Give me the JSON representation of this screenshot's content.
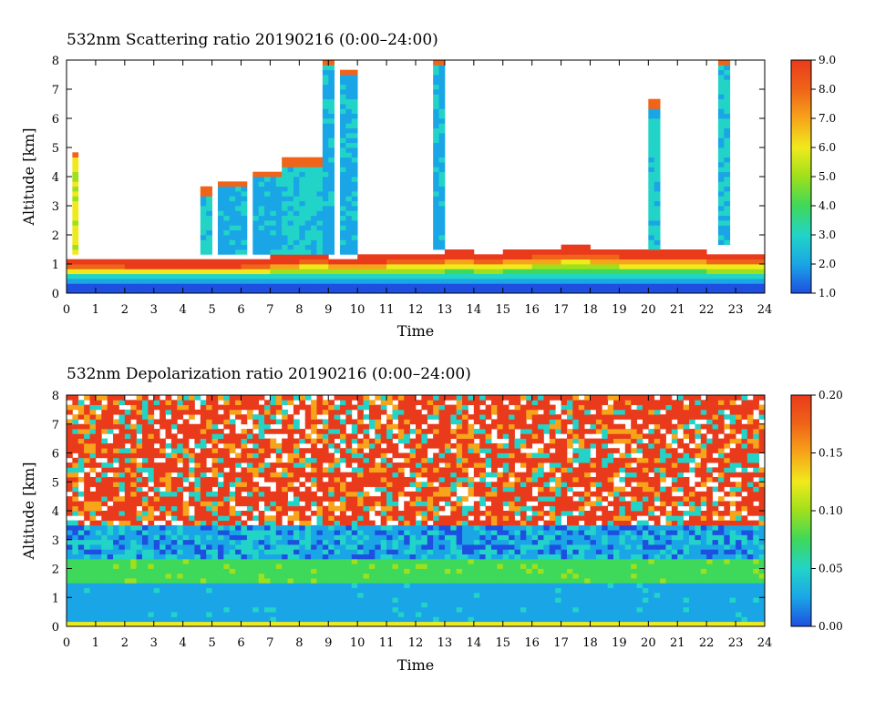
{
  "chart_data": [
    {
      "type": "heatmap",
      "title": "532nm Scattering ratio  20190216 (0:00–24:00)",
      "xlabel": "Time",
      "ylabel": "Altitude [km]",
      "xlim": [
        0,
        24
      ],
      "ylim": [
        0,
        8
      ],
      "x_ticks": [
        "0",
        "1",
        "2",
        "3",
        "4",
        "5",
        "6",
        "7",
        "8",
        "9",
        "10",
        "11",
        "12",
        "13",
        "14",
        "15",
        "16",
        "17",
        "18",
        "19",
        "20",
        "21",
        "22",
        "23",
        "24"
      ],
      "y_ticks": [
        "0",
        "1",
        "2",
        "3",
        "4",
        "5",
        "6",
        "7",
        "8"
      ],
      "colorbar": {
        "range": [
          1.0,
          9.0
        ],
        "ticks": [
          "1.0",
          "2.0",
          "3.0",
          "4.0",
          "5.0",
          "6.0",
          "7.0",
          "8.0",
          "9.0"
        ],
        "colors": [
          "#1e4fe0",
          "#1aa6e6",
          "#22d4c8",
          "#3ed85a",
          "#9fe01c",
          "#f0ea1c",
          "#f7a41a",
          "#ef6418",
          "#ea3a1c"
        ]
      },
      "features": {
        "boundary_layer_top_km": [
          1.2,
          1.2,
          1.15,
          1.1,
          1.1,
          1.15,
          1.2,
          1.3,
          1.35,
          1.25,
          1.3,
          1.35,
          1.4,
          1.45,
          1.4,
          1.5,
          1.55,
          1.6,
          1.55,
          1.5,
          1.5,
          1.45,
          1.4,
          1.4,
          1.35
        ],
        "cloud_columns": [
          {
            "x": [
              0.15,
              0.35
            ],
            "alt_km": [
              1.4,
              4.9
            ],
            "peak": 5.5
          },
          {
            "x": [
              4.6,
              4.9
            ],
            "alt_km": [
              1.4,
              3.6
            ],
            "peak": 3
          },
          {
            "x": [
              5.2,
              6.3
            ],
            "alt_km": [
              1.4,
              3.9
            ],
            "peak": 2.5
          },
          {
            "x": [
              6.4,
              7.3
            ],
            "alt_km": [
              1.4,
              4.2
            ],
            "peak": 2.5
          },
          {
            "x": [
              7.5,
              8.9
            ],
            "alt_km": [
              1.4,
              4.6
            ],
            "peak": 3
          },
          {
            "x": [
              8.9,
              9.1
            ],
            "alt_km": [
              1.4,
              8.0
            ],
            "peak": 2.5
          },
          {
            "x": [
              9.5,
              10.0
            ],
            "alt_km": [
              1.4,
              7.7
            ],
            "peak": 2.5
          },
          {
            "x": [
              12.7,
              13.0
            ],
            "alt_km": [
              1.5,
              8.0
            ],
            "peak": 2.5
          },
          {
            "x": [
              20.0,
              20.4
            ],
            "alt_km": [
              1.5,
              6.6
            ],
            "peak": 3
          },
          {
            "x": [
              22.5,
              22.7
            ],
            "alt_km": [
              1.6,
              8.0
            ],
            "peak": 3
          }
        ]
      }
    },
    {
      "type": "heatmap",
      "title": "532nm Depolarization ratio  20190216 (0:00–24:00)",
      "xlabel": "Time",
      "ylabel": "Altitude [km]",
      "xlim": [
        0,
        24
      ],
      "ylim": [
        0,
        8
      ],
      "x_ticks": [
        "0",
        "1",
        "2",
        "3",
        "4",
        "5",
        "6",
        "7",
        "8",
        "9",
        "10",
        "11",
        "12",
        "13",
        "14",
        "15",
        "16",
        "17",
        "18",
        "19",
        "20",
        "21",
        "22",
        "23",
        "24"
      ],
      "y_ticks": [
        "0",
        "1",
        "2",
        "3",
        "4",
        "5",
        "6",
        "7",
        "8"
      ],
      "colorbar": {
        "range": [
          0.0,
          0.2
        ],
        "ticks": [
          "0.00",
          "0.05",
          "0.10",
          "0.15",
          "0.20"
        ],
        "colors": [
          "#1e4fe0",
          "#1aa6e6",
          "#22d4c8",
          "#3ed85a",
          "#9fe01c",
          "#f0ea1c",
          "#f7a41a",
          "#ef6418",
          "#ea3a1c"
        ]
      },
      "features": {
        "low_depol_layer_top_km": 1.5,
        "mid_layer_km": [
          1.5,
          2.3
        ],
        "noisy_high_depol_above_km": 3.5
      }
    }
  ]
}
